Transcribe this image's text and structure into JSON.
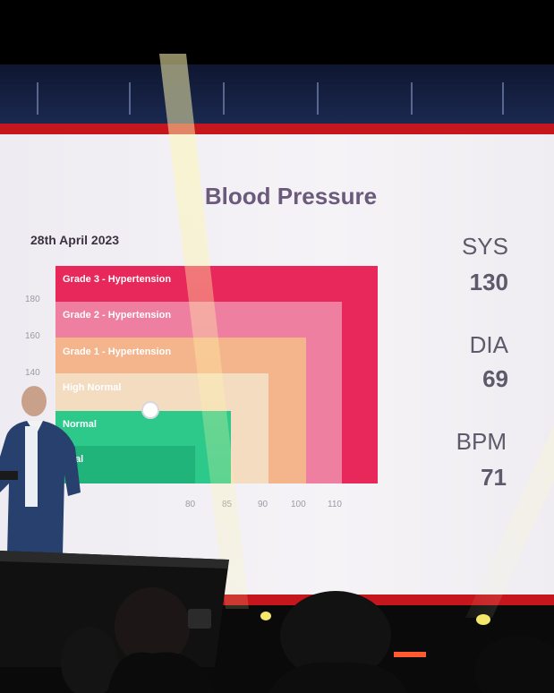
{
  "slide": {
    "title": "Blood Pressure",
    "date": "28th April 2023"
  },
  "chart_data": {
    "type": "heatmap",
    "title": "Blood Pressure",
    "y_ticks": [
      "180",
      "160",
      "140"
    ],
    "x_ticks": [
      "80",
      "85",
      "90",
      "100",
      "110"
    ],
    "zones": [
      {
        "label": "Grade 3 - Hypertension",
        "color": "#e8275a"
      },
      {
        "label": "Grade 2 - Hypertension",
        "color": "#ee7fa0"
      },
      {
        "label": "Grade 1 - Hypertension",
        "color": "#f4b48c"
      },
      {
        "label": "High Normal",
        "color": "#f3dcc0"
      },
      {
        "label": "Normal",
        "color": "#2cc98b"
      },
      {
        "label": "rmal",
        "color": "#21b47a"
      }
    ],
    "reading": {
      "sys": 130,
      "dia": 69
    }
  },
  "metrics": [
    {
      "label": "SYS",
      "value": "130"
    },
    {
      "label": "DIA",
      "value": "69"
    },
    {
      "label": "BPM",
      "value": "71"
    }
  ]
}
